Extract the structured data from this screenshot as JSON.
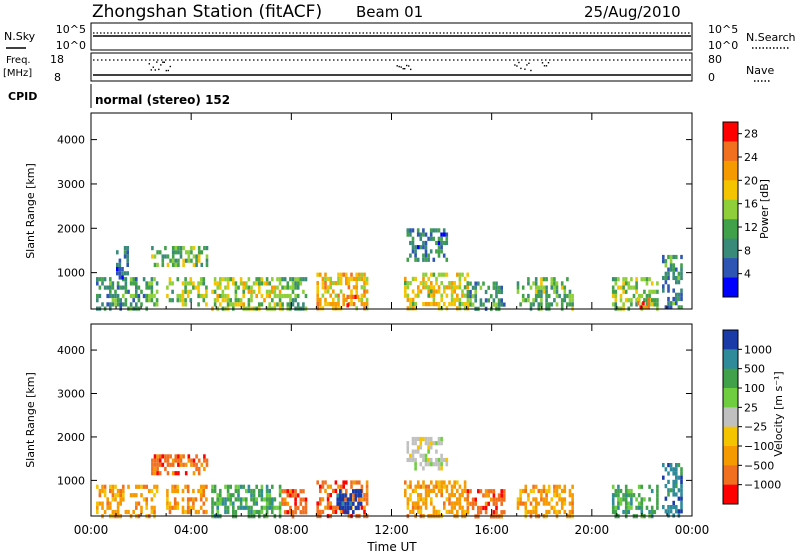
{
  "header": {
    "station": "Zhongshan Station (fitACF)",
    "beam": "Beam 01",
    "date": "25/Aug/2010"
  },
  "status_panels": {
    "nsky_label": "N.Sky",
    "nsky_ticks": [
      "10^5",
      "10^0"
    ],
    "nsearch_ticks": [
      "10^5",
      "10^0"
    ],
    "nsearch_label": "N.Search",
    "freq_label_1": "Freq.",
    "freq_label_2": "[MHz]",
    "freq_ticks": [
      "18",
      "8"
    ],
    "nave_ticks": [
      "80",
      "0"
    ],
    "nave_label": "Nave",
    "cpid_label": "CPID",
    "cpid_value": "normal (stereo) 152"
  },
  "colors": {
    "power_scale": [
      "#0000ff",
      "#2f55b4",
      "#3a8a7a",
      "#41a04a",
      "#8fd03a",
      "#f5c400",
      "#f59a00",
      "#f07020",
      "#ff0000"
    ],
    "velocity_scale": [
      "#ff0000",
      "#f07020",
      "#f59a00",
      "#f5c400",
      "#c0c0c0",
      "#6fce40",
      "#41a04a",
      "#2f8a9a",
      "#1a3aa8"
    ],
    "ground_scatter": "#b4b4b4"
  },
  "chart_data": [
    {
      "type": "heatmap",
      "name": "power",
      "ylabel": "Slant Range [km]",
      "ylim": [
        180,
        4600
      ],
      "yticks": [
        "1000",
        "2000",
        "3000",
        "4000"
      ],
      "xlim": [
        0,
        24
      ],
      "xticks": [
        "00:00",
        "04:00",
        "08:00",
        "12:00",
        "16:00",
        "20:00",
        "00:00"
      ],
      "colorbar_label": "Power [dB]",
      "colorbar_ticks": [
        "4",
        "8",
        "12",
        "16",
        "20",
        "24",
        "28"
      ],
      "colorbar_range": [
        0,
        30
      ],
      "echo_regions": [
        {
          "t0": 0.2,
          "t1": 2.6,
          "r0": 220,
          "r1": 900,
          "level": 10
        },
        {
          "t0": 1.0,
          "t1": 1.5,
          "r0": 900,
          "r1": 1600,
          "level": 6
        },
        {
          "t0": 2.4,
          "t1": 4.6,
          "r0": 1200,
          "r1": 1600,
          "level": 12
        },
        {
          "t0": 3.0,
          "t1": 4.6,
          "r0": 250,
          "r1": 900,
          "level": 14
        },
        {
          "t0": 4.8,
          "t1": 7.6,
          "r0": 200,
          "r1": 900,
          "level": 16
        },
        {
          "t0": 7.6,
          "t1": 8.6,
          "r0": 200,
          "r1": 900,
          "level": 12
        },
        {
          "t0": 9.0,
          "t1": 11.0,
          "r0": 200,
          "r1": 1000,
          "level": 20
        },
        {
          "t0": 10.2,
          "t1": 10.7,
          "r0": 250,
          "r1": 500,
          "level": 27
        },
        {
          "t0": 12.5,
          "t1": 15.0,
          "r0": 200,
          "r1": 1000,
          "level": 18
        },
        {
          "t0": 12.6,
          "t1": 14.2,
          "r0": 1300,
          "r1": 2000,
          "level": 7
        },
        {
          "t0": 15.0,
          "t1": 16.5,
          "r0": 200,
          "r1": 800,
          "level": 10
        },
        {
          "t0": 17.0,
          "t1": 19.2,
          "r0": 200,
          "r1": 900,
          "level": 12
        },
        {
          "t0": 20.8,
          "t1": 22.6,
          "r0": 200,
          "r1": 900,
          "level": 14
        },
        {
          "t0": 21.8,
          "t1": 22.3,
          "r0": 250,
          "r1": 450,
          "level": 25
        },
        {
          "t0": 22.8,
          "t1": 23.6,
          "r0": 200,
          "r1": 1400,
          "level": 8
        }
      ]
    },
    {
      "type": "heatmap",
      "name": "velocity",
      "ylabel": "Slant Range [km]",
      "ylim": [
        180,
        4600
      ],
      "yticks": [
        "1000",
        "2000",
        "3000",
        "4000"
      ],
      "xlim": [
        0,
        24
      ],
      "xticks": [
        "00:00",
        "04:00",
        "08:00",
        "12:00",
        "16:00",
        "20:00",
        "00:00"
      ],
      "xlabel": "Time UT",
      "colorbar_label": "Velocity [m s⁻¹]",
      "colorbar_ticks": [
        "1000",
        "500",
        "100",
        "25",
        "−25",
        "−100",
        "−500",
        "−1000"
      ],
      "echo_regions": [
        {
          "t0": 0.2,
          "t1": 2.6,
          "r0": 220,
          "r1": 900,
          "level": 2
        },
        {
          "t0": 2.4,
          "t1": 4.6,
          "r0": 1200,
          "r1": 1600,
          "level": 1
        },
        {
          "t0": 3.0,
          "t1": 4.6,
          "r0": 250,
          "r1": 900,
          "level": 2
        },
        {
          "t0": 4.8,
          "t1": 7.6,
          "r0": 200,
          "r1": 900,
          "level": 6
        },
        {
          "t0": 7.6,
          "t1": 8.6,
          "r0": 200,
          "r1": 800,
          "level": 1
        },
        {
          "t0": 9.0,
          "t1": 11.0,
          "r0": 200,
          "r1": 1000,
          "level": 1
        },
        {
          "t0": 9.8,
          "t1": 10.8,
          "r0": 300,
          "r1": 800,
          "level": 8
        },
        {
          "t0": 12.5,
          "t1": 15.0,
          "r0": 200,
          "r1": 1000,
          "level": 2
        },
        {
          "t0": 12.6,
          "t1": 14.2,
          "r0": 1300,
          "r1": 2000,
          "level": 4
        },
        {
          "t0": 15.0,
          "t1": 16.5,
          "r0": 200,
          "r1": 800,
          "level": 1
        },
        {
          "t0": 17.0,
          "t1": 19.2,
          "r0": 200,
          "r1": 900,
          "level": 2
        },
        {
          "t0": 20.8,
          "t1": 22.6,
          "r0": 200,
          "r1": 900,
          "level": 6
        },
        {
          "t0": 22.8,
          "t1": 23.6,
          "r0": 200,
          "r1": 1400,
          "level": 7
        }
      ]
    }
  ]
}
